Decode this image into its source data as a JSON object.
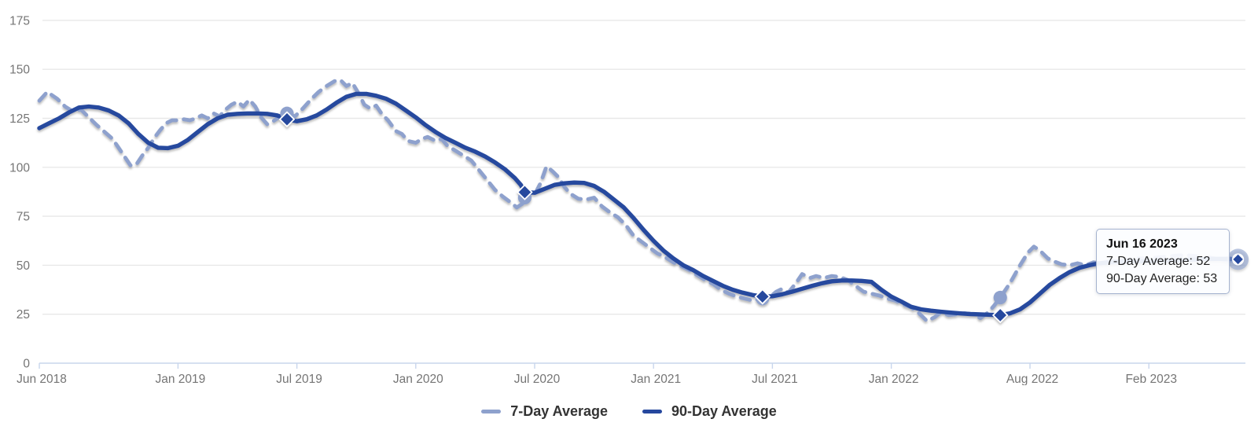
{
  "colors": {
    "navy": "#26489e",
    "periwinkle": "#8ea1cd",
    "grid": "#e8e8e8",
    "axis": "#c8d6ec",
    "tick_label": "#757575",
    "legend_text": "#333333",
    "tooltip_border": "#a6b4d0"
  },
  "tooltip": {
    "date": "Jun 16 2023",
    "entries": [
      "7-Day Average: 52",
      "90-Day Average: 53"
    ]
  },
  "legend": {
    "items": [
      {
        "label": "7-Day Average",
        "color_key": "periwinkle"
      },
      {
        "label": "90-Day Average",
        "color_key": "navy"
      }
    ]
  },
  "chart_data": {
    "type": "line",
    "title": "",
    "xlabel": "",
    "ylabel": "",
    "x_unit": "months since Jun 2018",
    "xlim": [
      0,
      60.5
    ],
    "ylim": [
      0,
      175
    ],
    "grid": "horizontal",
    "legend_position": "bottom-center",
    "yticks": [
      0,
      25,
      50,
      75,
      100,
      125,
      150,
      175
    ],
    "xticks": [
      {
        "label": "Jun 2018",
        "m": 0
      },
      {
        "label": "Jan 2019",
        "m": 7
      },
      {
        "label": "Jul 2019",
        "m": 13
      },
      {
        "label": "Jan 2020",
        "m": 19
      },
      {
        "label": "Jul 2020",
        "m": 25
      },
      {
        "label": "Jan 2021",
        "m": 31
      },
      {
        "label": "Jul 2021",
        "m": 37
      },
      {
        "label": "Jan 2022",
        "m": 43
      },
      {
        "label": "Aug 2022",
        "m": 50
      },
      {
        "label": "Feb 2023",
        "m": 56
      }
    ],
    "series": [
      {
        "name": "7-Day Average",
        "style": "dashed",
        "color_key": "periwinkle",
        "points": [
          [
            0,
            134
          ],
          [
            0.4,
            138.5
          ],
          [
            0.9,
            135
          ],
          [
            1.3,
            131
          ],
          [
            1.7,
            128.5
          ],
          [
            2.1,
            129.5
          ],
          [
            2.5,
            125.5
          ],
          [
            2.9,
            121.5
          ],
          [
            3.3,
            118
          ],
          [
            3.7,
            114.5
          ],
          [
            4.0,
            110
          ],
          [
            4.3,
            105.5
          ],
          [
            4.6,
            101
          ],
          [
            4.9,
            101.5
          ],
          [
            5.2,
            106
          ],
          [
            5.5,
            110
          ],
          [
            5.8,
            115
          ],
          [
            6.1,
            119
          ],
          [
            6.4,
            122.5
          ],
          [
            6.7,
            124
          ],
          [
            7.0,
            124
          ],
          [
            7.3,
            124.5
          ],
          [
            7.6,
            124
          ],
          [
            7.9,
            125
          ],
          [
            8.2,
            126.5
          ],
          [
            8.5,
            125
          ],
          [
            8.8,
            127.5
          ],
          [
            9.1,
            126
          ],
          [
            9.4,
            129.5
          ],
          [
            9.7,
            132
          ],
          [
            10,
            133.5
          ],
          [
            10.3,
            131
          ],
          [
            10.6,
            134.5
          ],
          [
            10.9,
            131
          ],
          [
            11.2,
            125.5
          ],
          [
            11.5,
            122
          ],
          [
            11.8,
            123.5
          ],
          [
            12.1,
            125.5
          ],
          [
            12.5,
            127.5
          ],
          [
            12.9,
            126
          ],
          [
            13.3,
            130
          ],
          [
            13.7,
            134.5
          ],
          [
            14.1,
            138.5
          ],
          [
            14.5,
            141.5
          ],
          [
            14.9,
            144
          ],
          [
            15.2,
            144.5
          ],
          [
            15.5,
            141.5
          ],
          [
            15.8,
            143
          ],
          [
            16.1,
            138
          ],
          [
            16.4,
            132
          ],
          [
            16.7,
            130
          ],
          [
            17,
            131.5
          ],
          [
            17.3,
            127
          ],
          [
            17.6,
            124
          ],
          [
            18,
            118.5
          ],
          [
            18.3,
            117
          ],
          [
            18.6,
            113.5
          ],
          [
            19,
            112.5
          ],
          [
            19.3,
            114.5
          ],
          [
            19.6,
            115.5
          ],
          [
            20,
            113.5
          ],
          [
            20.3,
            114.5
          ],
          [
            20.6,
            111
          ],
          [
            21,
            108.5
          ],
          [
            21.4,
            106
          ],
          [
            21.8,
            103.5
          ],
          [
            22.2,
            98.5
          ],
          [
            22.6,
            93.5
          ],
          [
            23,
            88.5
          ],
          [
            23.4,
            85
          ],
          [
            23.8,
            82
          ],
          [
            24.1,
            79.5
          ],
          [
            24.4,
            81.5
          ],
          [
            24.7,
            83
          ],
          [
            24.5,
            84.5
          ],
          [
            25,
            86
          ],
          [
            25.3,
            92
          ],
          [
            25.6,
            100.5
          ],
          [
            25.9,
            98
          ],
          [
            26.2,
            95
          ],
          [
            26.5,
            90
          ],
          [
            26.8,
            86.5
          ],
          [
            27.2,
            84
          ],
          [
            27.6,
            83.5
          ],
          [
            28,
            84.5
          ],
          [
            28.4,
            80
          ],
          [
            28.8,
            77
          ],
          [
            29.2,
            74.5
          ],
          [
            29.6,
            70.5
          ],
          [
            30,
            65
          ],
          [
            30.4,
            62
          ],
          [
            30.8,
            59
          ],
          [
            31.2,
            56
          ],
          [
            31.6,
            54
          ],
          [
            32,
            51.5
          ],
          [
            32.4,
            49.5
          ],
          [
            32.8,
            47.5
          ],
          [
            33.2,
            45
          ],
          [
            33.6,
            42.5
          ],
          [
            34,
            40.5
          ],
          [
            34.4,
            37.5
          ],
          [
            34.8,
            35.5
          ],
          [
            35.2,
            34
          ],
          [
            35.6,
            33
          ],
          [
            36,
            32
          ],
          [
            36.5,
            33
          ],
          [
            36.9,
            34
          ],
          [
            37.2,
            36.5
          ],
          [
            37.5,
            38
          ],
          [
            37.8,
            36
          ],
          [
            38.2,
            41
          ],
          [
            38.5,
            45.5
          ],
          [
            38.9,
            43.5
          ],
          [
            39.2,
            44.5
          ],
          [
            39.6,
            43.5
          ],
          [
            40,
            44.5
          ],
          [
            40.4,
            44
          ],
          [
            40.8,
            42.5
          ],
          [
            41.2,
            39.5
          ],
          [
            41.6,
            36.5
          ],
          [
            42,
            35.5
          ],
          [
            42.4,
            34.5
          ],
          [
            42.8,
            33
          ],
          [
            43.2,
            32
          ],
          [
            43.6,
            30
          ],
          [
            44,
            28.5
          ],
          [
            44.4,
            25.5
          ],
          [
            44.8,
            21.5
          ],
          [
            45.2,
            23.5
          ],
          [
            45.5,
            26
          ],
          [
            45.9,
            24.5
          ],
          [
            46.3,
            25
          ],
          [
            46.7,
            25.5
          ],
          [
            47.1,
            25
          ],
          [
            47.5,
            23
          ],
          [
            47.9,
            26
          ],
          [
            48.2,
            29.5
          ],
          [
            48.5,
            33.5
          ],
          [
            49,
            41
          ],
          [
            49.5,
            50
          ],
          [
            49.9,
            56.5
          ],
          [
            50.2,
            59.5
          ],
          [
            50.5,
            57.5
          ],
          [
            50.9,
            53.5
          ],
          [
            51.2,
            52
          ],
          [
            51.6,
            50.5
          ],
          [
            52,
            50
          ],
          [
            52.4,
            51
          ],
          [
            52.8,
            50
          ],
          [
            53.2,
            51.5
          ],
          [
            53.6,
            51
          ],
          [
            54,
            52
          ],
          [
            54.5,
            52.5
          ],
          [
            55,
            53
          ],
          [
            55.5,
            53.5
          ],
          [
            56,
            53.5
          ],
          [
            56.5,
            54
          ],
          [
            57,
            54.5
          ],
          [
            57.5,
            55
          ],
          [
            58,
            55
          ],
          [
            58.5,
            54.5
          ],
          [
            59,
            54
          ],
          [
            59.5,
            53.2
          ],
          [
            60,
            52.5
          ],
          [
            60.5,
            52
          ]
        ]
      },
      {
        "name": "90-Day Average",
        "style": "solid",
        "color_key": "navy",
        "points": [
          [
            0,
            120
          ],
          [
            0.5,
            122.5
          ],
          [
            1,
            125
          ],
          [
            1.5,
            128
          ],
          [
            2,
            130.5
          ],
          [
            2.5,
            131
          ],
          [
            3,
            130.5
          ],
          [
            3.5,
            129
          ],
          [
            4,
            126.5
          ],
          [
            4.5,
            122.5
          ],
          [
            5,
            117
          ],
          [
            5.5,
            112.5
          ],
          [
            6,
            110
          ],
          [
            6.5,
            109.8
          ],
          [
            7,
            111
          ],
          [
            7.5,
            114
          ],
          [
            8,
            118
          ],
          [
            8.5,
            122
          ],
          [
            9,
            125
          ],
          [
            9.5,
            126.8
          ],
          [
            10,
            127.3
          ],
          [
            10.5,
            127.5
          ],
          [
            11,
            127.5
          ],
          [
            11.5,
            127.3
          ],
          [
            12,
            126.5
          ],
          [
            12.5,
            124.5
          ],
          [
            13,
            123.5
          ],
          [
            13.5,
            124.5
          ],
          [
            14,
            126.5
          ],
          [
            14.5,
            129.5
          ],
          [
            15,
            133
          ],
          [
            15.5,
            136
          ],
          [
            16,
            137.5
          ],
          [
            16.5,
            137.5
          ],
          [
            17,
            136.5
          ],
          [
            17.5,
            135
          ],
          [
            18,
            132.5
          ],
          [
            18.5,
            129
          ],
          [
            19,
            125.5
          ],
          [
            19.5,
            121.5
          ],
          [
            20,
            118
          ],
          [
            20.5,
            115
          ],
          [
            21,
            112.5
          ],
          [
            21.5,
            110
          ],
          [
            22,
            108
          ],
          [
            22.5,
            105.5
          ],
          [
            23,
            102.5
          ],
          [
            23.5,
            99
          ],
          [
            24,
            94.5
          ],
          [
            24.3,
            91
          ],
          [
            24.5,
            87.3
          ],
          [
            25,
            87
          ],
          [
            25.5,
            89
          ],
          [
            26,
            91
          ],
          [
            26.5,
            91.8
          ],
          [
            27,
            92.2
          ],
          [
            27.5,
            92
          ],
          [
            28,
            90.5
          ],
          [
            28.5,
            87.5
          ],
          [
            29,
            83.5
          ],
          [
            29.5,
            79.5
          ],
          [
            30,
            74
          ],
          [
            30.5,
            68
          ],
          [
            31,
            62.5
          ],
          [
            31.5,
            57.5
          ],
          [
            32,
            53.5
          ],
          [
            32.5,
            50
          ],
          [
            33,
            47.5
          ],
          [
            33.5,
            44.5
          ],
          [
            34,
            42
          ],
          [
            34.5,
            39.5
          ],
          [
            35,
            37.5
          ],
          [
            35.5,
            36
          ],
          [
            36,
            34.8
          ],
          [
            36.5,
            34
          ],
          [
            37,
            34.2
          ],
          [
            37.5,
            35.2
          ],
          [
            38,
            36.5
          ],
          [
            38.5,
            38
          ],
          [
            39,
            39.5
          ],
          [
            39.5,
            40.8
          ],
          [
            40,
            41.8
          ],
          [
            40.5,
            42.2
          ],
          [
            41,
            42.2
          ],
          [
            41.5,
            42
          ],
          [
            42,
            41.5
          ],
          [
            42.5,
            37.5
          ],
          [
            43,
            34
          ],
          [
            43.5,
            31.5
          ],
          [
            44,
            28.8
          ],
          [
            44.5,
            27.5
          ],
          [
            45,
            26.8
          ],
          [
            45.5,
            26.3
          ],
          [
            46,
            25.8
          ],
          [
            46.5,
            25.4
          ],
          [
            47,
            25.1
          ],
          [
            47.5,
            24.9
          ],
          [
            48,
            24.7
          ],
          [
            48.5,
            24.5
          ],
          [
            49,
            25.5
          ],
          [
            49.5,
            27.5
          ],
          [
            50,
            31
          ],
          [
            50.5,
            35.5
          ],
          [
            51,
            40
          ],
          [
            51.5,
            43.5
          ],
          [
            52,
            46.5
          ],
          [
            52.5,
            48.7
          ],
          [
            53,
            50
          ],
          [
            53.5,
            51
          ],
          [
            54,
            51.5
          ],
          [
            54.5,
            51.8
          ],
          [
            55,
            52
          ],
          [
            55.5,
            52
          ],
          [
            56,
            52
          ],
          [
            56.5,
            52.2
          ],
          [
            57,
            52.4
          ],
          [
            57.5,
            52.6
          ],
          [
            58,
            52.8
          ],
          [
            59,
            53.2
          ],
          [
            60,
            53.3
          ],
          [
            60.5,
            53
          ]
        ]
      }
    ],
    "markers": [
      {
        "m": 12.5,
        "v7": 127.5,
        "v90": 124.5,
        "end": false
      },
      {
        "m": 24.5,
        "v7": 84.5,
        "v90": 87.3,
        "end": false
      },
      {
        "m": 36.5,
        "v7": 33,
        "v90": 34,
        "end": false
      },
      {
        "m": 48.5,
        "v7": 33.5,
        "v90": 24.5,
        "end": false
      },
      {
        "m": 60.5,
        "v7": 52,
        "v90": 53,
        "end": true
      }
    ]
  }
}
